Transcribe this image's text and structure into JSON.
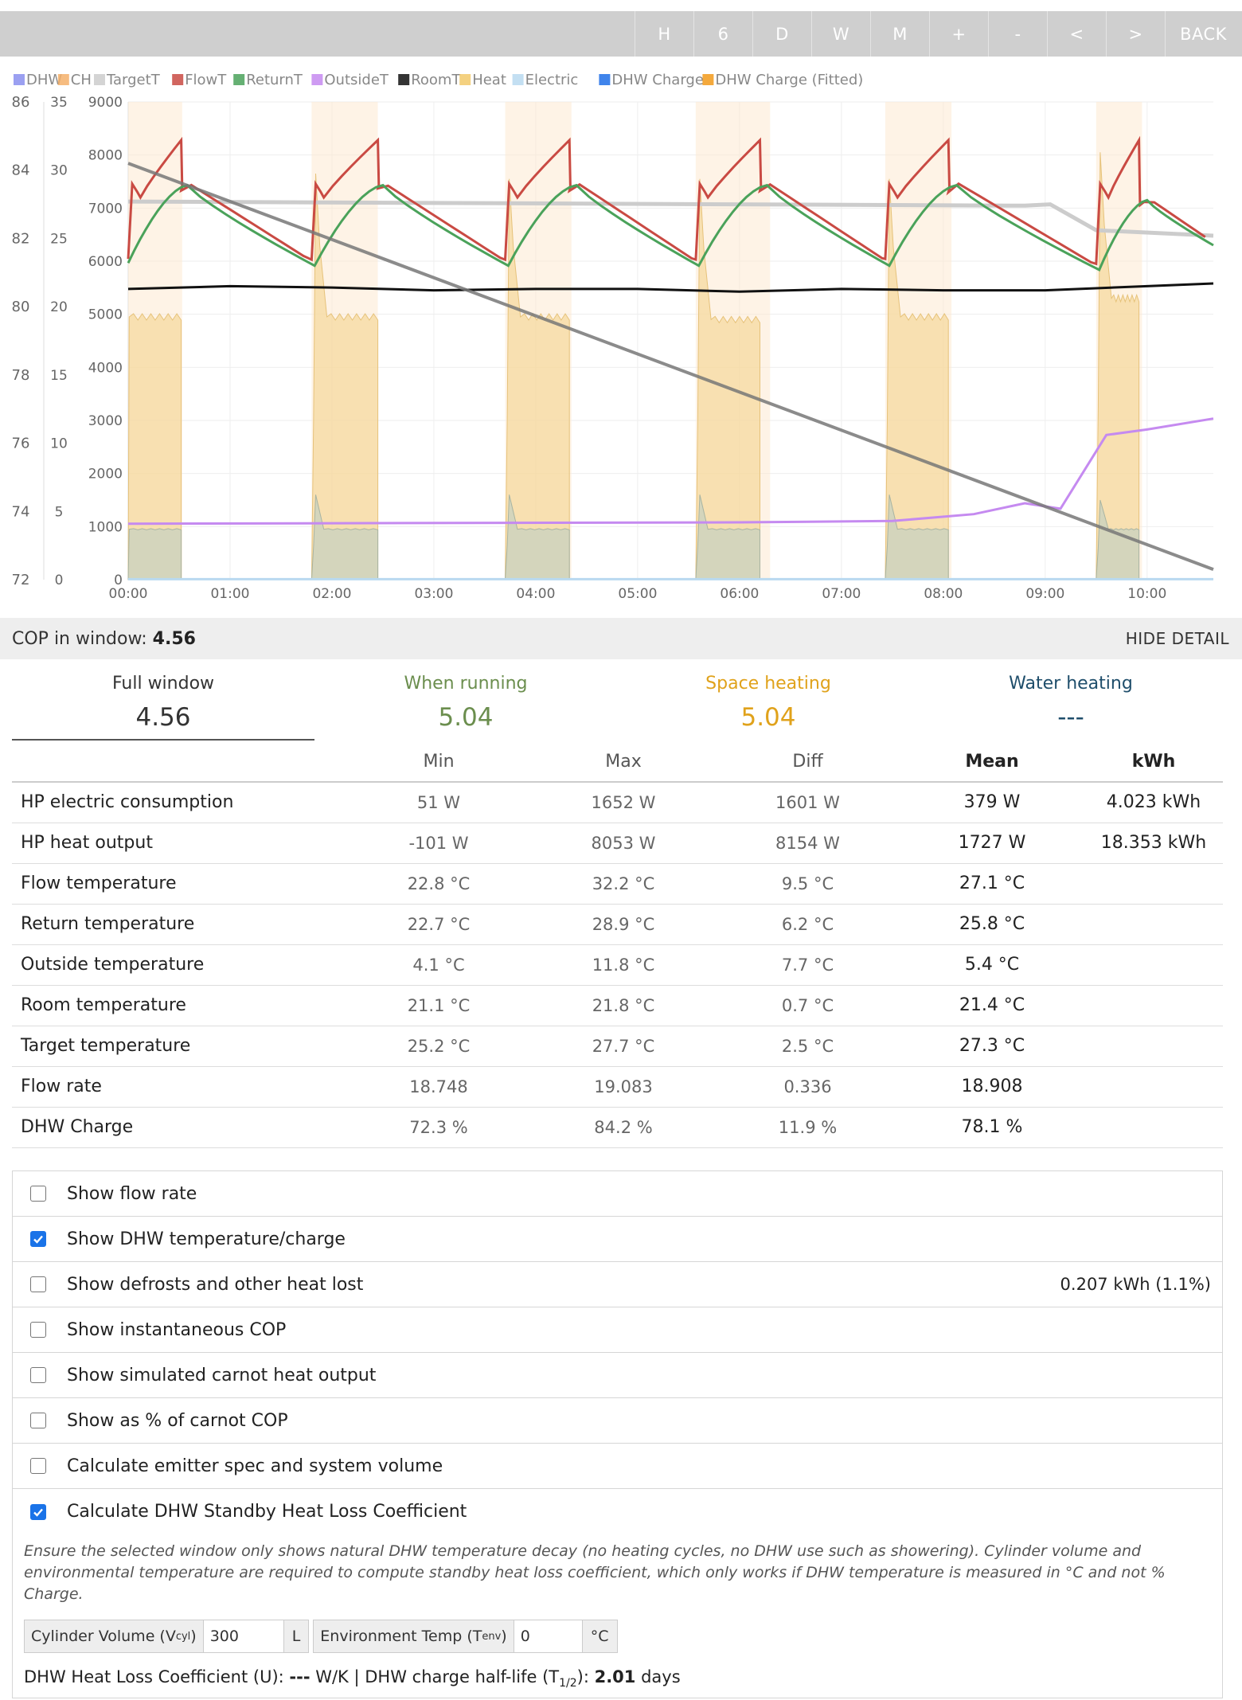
{
  "toolbar": {
    "buttons": [
      "H",
      "6",
      "D",
      "W",
      "M",
      "+",
      "-",
      "<",
      ">"
    ],
    "back_label": "BACK"
  },
  "chart_data": {
    "type": "line",
    "legend": [
      {
        "name": "DHW",
        "color": "#8a8fee"
      },
      {
        "name": "CH",
        "color": "#f4b06a"
      },
      {
        "name": "TargetT",
        "color": "#cccccc"
      },
      {
        "name": "FlowT",
        "color": "#c94a43"
      },
      {
        "name": "ReturnT",
        "color": "#4aa25a"
      },
      {
        "name": "OutsideT",
        "color": "#c58af0"
      },
      {
        "name": "RoomT",
        "color": "#111111"
      },
      {
        "name": "Heat",
        "color": "#f2c96a"
      },
      {
        "name": "Electric",
        "color": "#b9d9f0"
      },
      {
        "name": "DHW Charge",
        "color": "#1f6fe8"
      },
      {
        "name": "DHW Charge (Fitted)",
        "color": "#f29a1a"
      }
    ],
    "y_left_charge_ticks": [
      "86",
      "84",
      "82",
      "80",
      "78",
      "76",
      "74",
      "72"
    ],
    "y_left_temp_ticks": [
      "35",
      "30",
      "25",
      "20",
      "15",
      "10",
      "5",
      "0"
    ],
    "y_power_ticks": [
      "9000",
      "8000",
      "7000",
      "6000",
      "5000",
      "4000",
      "3000",
      "2000",
      "1000",
      "0"
    ],
    "x_ticks": [
      "00:00",
      "01:00",
      "02:00",
      "03:00",
      "04:00",
      "05:00",
      "06:00",
      "07:00",
      "08:00",
      "09:00",
      "10:00"
    ],
    "x_range_hours": [
      0,
      10.65
    ],
    "temp_range": [
      0,
      35
    ],
    "power_range": [
      0,
      9000
    ],
    "charge_range": [
      72,
      86
    ],
    "ch_windows_hours": [
      [
        0,
        0.53
      ],
      [
        1.8,
        2.45
      ],
      [
        3.7,
        4.35
      ],
      [
        5.57,
        6.3
      ],
      [
        7.43,
        8.08
      ],
      [
        9.5,
        9.95
      ]
    ],
    "heat_cycles": [
      {
        "start": 0.0,
        "end": 0.52,
        "plateau": 4950,
        "peak": 4950
      },
      {
        "start": 1.8,
        "end": 2.45,
        "plateau": 4950,
        "peak": 7650
      },
      {
        "start": 3.7,
        "end": 4.33,
        "plateau": 4950,
        "peak": 7550
      },
      {
        "start": 5.57,
        "end": 6.2,
        "plateau": 4900,
        "peak": 7550
      },
      {
        "start": 7.43,
        "end": 8.05,
        "plateau": 4950,
        "peak": 7550
      },
      {
        "start": 9.5,
        "end": 9.92,
        "plateau": 5300,
        "peak": 8050
      }
    ],
    "electric_cycles": [
      {
        "start": 0.0,
        "end": 0.52,
        "plateau": 950,
        "peak": 950
      },
      {
        "start": 1.8,
        "end": 2.45,
        "plateau": 950,
        "peak": 1600
      },
      {
        "start": 3.7,
        "end": 4.33,
        "plateau": 950,
        "peak": 1600
      },
      {
        "start": 5.57,
        "end": 6.2,
        "plateau": 950,
        "peak": 1600
      },
      {
        "start": 7.43,
        "end": 8.05,
        "plateau": 950,
        "peak": 1600
      },
      {
        "start": 9.5,
        "end": 9.92,
        "plateau": 950,
        "peak": 1500
      }
    ],
    "flowT": {
      "min": 22.8,
      "max": 32.2,
      "cycle_starts": [
        0.0,
        1.8,
        3.7,
        5.57,
        7.43,
        9.5
      ],
      "cycle_ends": [
        0.52,
        2.45,
        4.33,
        6.2,
        8.05,
        9.92
      ]
    },
    "returnT": {
      "points": [
        [
          0,
          23.2
        ],
        [
          0.58,
          28.9
        ],
        [
          1.83,
          23.0
        ],
        [
          2.5,
          28.9
        ],
        [
          3.73,
          23.0
        ],
        [
          4.4,
          28.9
        ],
        [
          5.6,
          23.0
        ],
        [
          6.27,
          28.9
        ],
        [
          7.47,
          23.0
        ],
        [
          8.13,
          28.9
        ],
        [
          9.53,
          22.7
        ],
        [
          10.0,
          27.8
        ],
        [
          10.65,
          24.5
        ]
      ]
    },
    "targetT": {
      "points": [
        [
          0,
          27.7
        ],
        [
          8.8,
          27.4
        ],
        [
          9.05,
          27.5
        ],
        [
          9.5,
          25.6
        ],
        [
          10.65,
          25.2
        ]
      ]
    },
    "roomT": {
      "points": [
        [
          0,
          21.3
        ],
        [
          1.0,
          21.5
        ],
        [
          2.0,
          21.4
        ],
        [
          3.0,
          21.2
        ],
        [
          4.0,
          21.3
        ],
        [
          5.0,
          21.3
        ],
        [
          6.0,
          21.1
        ],
        [
          7.0,
          21.3
        ],
        [
          8.0,
          21.2
        ],
        [
          9.0,
          21.2
        ],
        [
          10.0,
          21.5
        ],
        [
          10.65,
          21.7
        ]
      ]
    },
    "outsideT": {
      "points": [
        [
          0,
          4.1
        ],
        [
          6.0,
          4.2
        ],
        [
          7.5,
          4.3
        ],
        [
          8.3,
          4.8
        ],
        [
          8.8,
          5.6
        ],
        [
          9.15,
          5.2
        ],
        [
          9.6,
          10.6
        ],
        [
          10.0,
          11.0
        ],
        [
          10.65,
          11.8
        ]
      ]
    },
    "dhw_charge_fitted": {
      "points": [
        [
          0,
          84.2
        ],
        [
          10.65,
          72.3
        ]
      ]
    }
  },
  "summary": {
    "cop_label": "COP in window:",
    "cop_value": "4.56",
    "hide_detail": "HIDE DETAIL"
  },
  "tabs": [
    {
      "label": "Full window",
      "value": "4.56",
      "color": "#333333"
    },
    {
      "label": "When running",
      "value": "5.04",
      "color": "#6b8e4e"
    },
    {
      "label": "Space heating",
      "value": "5.04",
      "color": "#e0a21b"
    },
    {
      "label": "Water heating",
      "value": "---",
      "color": "#1f4e6b"
    }
  ],
  "stats": {
    "headers": [
      "",
      "Min",
      "Max",
      "Diff",
      "Mean",
      "kWh"
    ],
    "rows": [
      {
        "label": "HP electric consumption",
        "min": "51 W",
        "max": "1652 W",
        "diff": "1601 W",
        "mean": "379 W",
        "kwh": "4.023 kWh"
      },
      {
        "label": "HP heat output",
        "min": "-101 W",
        "max": "8053 W",
        "diff": "8154 W",
        "mean": "1727 W",
        "kwh": "18.353 kWh"
      },
      {
        "label": "Flow temperature",
        "min": "22.8 °C",
        "max": "32.2 °C",
        "diff": "9.5 °C",
        "mean": "27.1 °C",
        "kwh": ""
      },
      {
        "label": "Return temperature",
        "min": "22.7 °C",
        "max": "28.9 °C",
        "diff": "6.2 °C",
        "mean": "25.8 °C",
        "kwh": ""
      },
      {
        "label": "Outside temperature",
        "min": "4.1 °C",
        "max": "11.8 °C",
        "diff": "7.7 °C",
        "mean": "5.4 °C",
        "kwh": ""
      },
      {
        "label": "Room temperature",
        "min": "21.1 °C",
        "max": "21.8 °C",
        "diff": "0.7 °C",
        "mean": "21.4 °C",
        "kwh": ""
      },
      {
        "label": "Target temperature",
        "min": "25.2 °C",
        "max": "27.7 °C",
        "diff": "2.5 °C",
        "mean": "27.3 °C",
        "kwh": ""
      },
      {
        "label": "Flow rate",
        "min": "18.748",
        "max": "19.083",
        "diff": "0.336",
        "mean": "18.908",
        "kwh": ""
      },
      {
        "label": "DHW Charge",
        "min": "72.3 %",
        "max": "84.2 %",
        "diff": "11.9 %",
        "mean": "78.1 %",
        "kwh": ""
      }
    ]
  },
  "options": [
    {
      "label": "Show flow rate",
      "checked": false,
      "right": ""
    },
    {
      "label": "Show DHW temperature/charge",
      "checked": true,
      "right": ""
    },
    {
      "label": "Show defrosts and other heat lost",
      "checked": false,
      "right": "0.207 kWh (1.1%)"
    },
    {
      "label": "Show instantaneous COP",
      "checked": false,
      "right": ""
    },
    {
      "label": "Show simulated carnot heat output",
      "checked": false,
      "right": ""
    },
    {
      "label": "Show as % of carnot COP",
      "checked": false,
      "right": ""
    },
    {
      "label": "Calculate emitter spec and system volume",
      "checked": false,
      "right": ""
    },
    {
      "label": "Calculate DHW Standby Heat Loss Coefficient",
      "checked": true,
      "right": ""
    }
  ],
  "dhw_standby": {
    "note": "Ensure the selected window only shows natural DHW temperature decay (no heating cycles, no DHW use such as showering). Cylinder volume and environmental temperature are required to compute standby heat loss coefficient, which only works if DHW temperature is measured in °C and not % Charge.",
    "cyl_label": "Cylinder Volume (V",
    "cyl_sub": "cyl",
    "cyl_label_end": ")",
    "cyl_value": "300",
    "cyl_unit": "L",
    "env_label": "Environment Temp (T",
    "env_sub": "env",
    "env_label_end": ")",
    "env_value": "0",
    "env_unit": "°C",
    "result_u_label": "DHW Heat Loss Coefficient (U): ",
    "result_u_value": "---",
    "result_u_unit": " W/K | DHW charge half-life (T",
    "result_half_sub": "1/2",
    "result_half_label_end": "): ",
    "result_half_value": "2.01",
    "result_half_unit": " days"
  }
}
